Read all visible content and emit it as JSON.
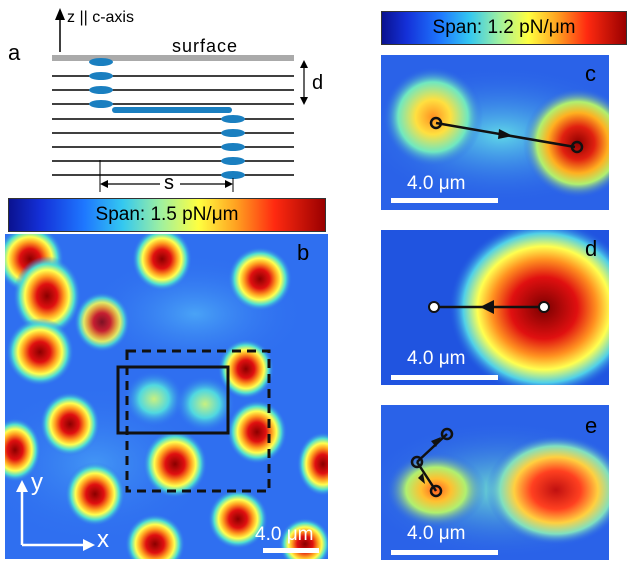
{
  "panel_a": {
    "letter": "a",
    "axis_label": "z || c-axis",
    "surface_label": "surface",
    "d_label": "d",
    "s_label": "s"
  },
  "panel_b": {
    "letter": "b",
    "colorbar_label": "Span: 1.5 pN/μm",
    "scale_label": "4.0 μm",
    "x_label": "x",
    "y_label": "y"
  },
  "colorbar_right": {
    "label": "Span: 1.2 pN/μm"
  },
  "panel_c": {
    "letter": "c",
    "scale_label": "4.0 μm"
  },
  "panel_d": {
    "letter": "d",
    "scale_label": "4.0 μm"
  },
  "panel_e": {
    "letter": "e",
    "scale_label": "4.0 μm"
  },
  "colors": {
    "map_background": "#2f6ff0",
    "high": "#9a0000",
    "mid": "#ffff40",
    "surface": "#aaaaaa",
    "vortex": "#1a7fc0"
  }
}
